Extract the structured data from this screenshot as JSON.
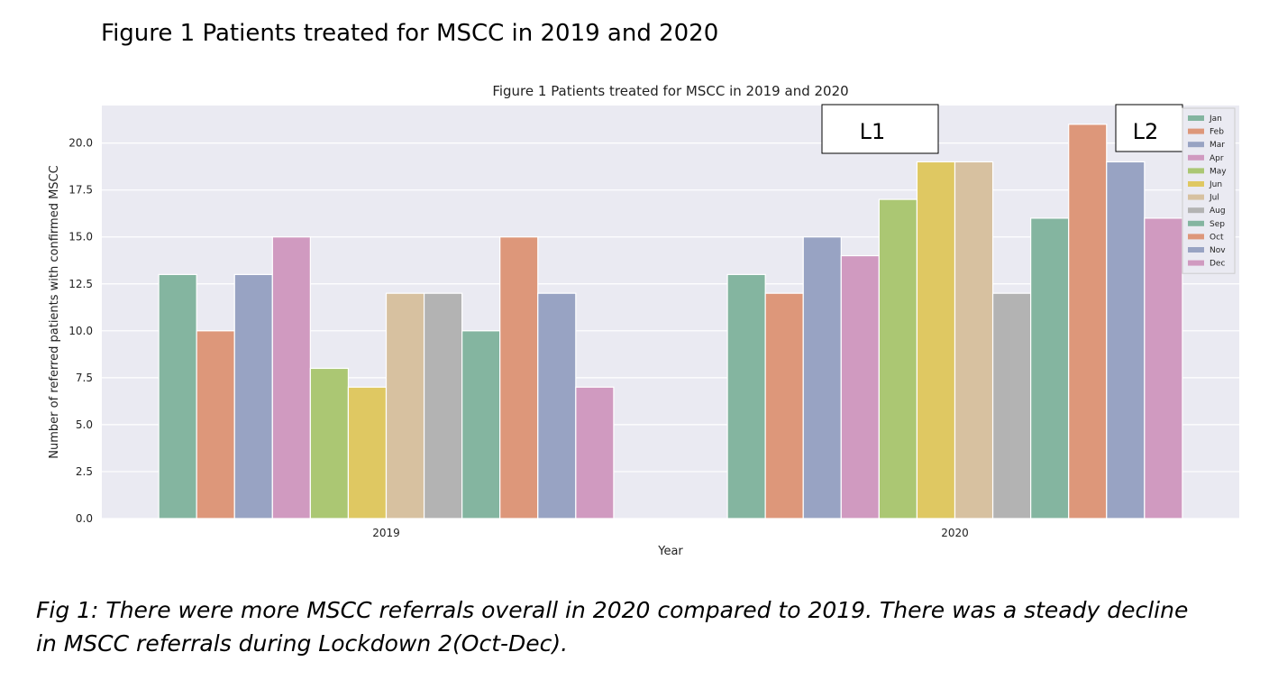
{
  "page": {
    "title": "Figure 1 Patients treated for MSCC in 2019 and 2020",
    "caption_line1": "Fig 1: There were more MSCC referrals overall in 2020 compared to 2019.  There was a steady decline",
    "caption_line2": "in MSCC referrals during Lockdown 2(Oct-Dec)."
  },
  "chart_data": {
    "type": "bar",
    "title": "Figure 1 Patients treated for MSCC in 2019 and 2020",
    "xlabel": "Year",
    "ylabel": "Number of referred patients with confirmed MSCC",
    "categories": [
      "2019",
      "2020"
    ],
    "ylim": [
      0,
      22
    ],
    "yticks": [
      "0.0",
      "2.5",
      "5.0",
      "7.5",
      "10.0",
      "12.5",
      "15.0",
      "17.5",
      "20.0"
    ],
    "grid": true,
    "legend_position": "top-right",
    "series": [
      {
        "name": "Jan",
        "color": "#84b5a0",
        "values": [
          13,
          13
        ]
      },
      {
        "name": "Feb",
        "color": "#dd977a",
        "values": [
          10,
          12
        ]
      },
      {
        "name": "Mar",
        "color": "#98a3c3",
        "values": [
          13,
          15
        ]
      },
      {
        "name": "Apr",
        "color": "#d09ac0",
        "values": [
          15,
          14
        ]
      },
      {
        "name": "May",
        "color": "#abc773",
        "values": [
          8,
          17
        ]
      },
      {
        "name": "Jun",
        "color": "#dfc862",
        "values": [
          7,
          19
        ]
      },
      {
        "name": "Jul",
        "color": "#d7c1a0",
        "values": [
          12,
          19
        ]
      },
      {
        "name": "Aug",
        "color": "#b3b3b3",
        "values": [
          12,
          12
        ]
      },
      {
        "name": "Sep",
        "color": "#84b5a0",
        "values": [
          10,
          16
        ]
      },
      {
        "name": "Oct",
        "color": "#dd977a",
        "values": [
          15,
          21
        ]
      },
      {
        "name": "Nov",
        "color": "#98a3c3",
        "values": [
          12,
          19
        ]
      },
      {
        "name": "Dec",
        "color": "#d09ac0",
        "values": [
          7,
          16
        ]
      }
    ],
    "annotations": [
      "L1",
      "L2"
    ]
  },
  "colors": {
    "plot_background": "#eaeaf2",
    "grid": "#ffffff"
  }
}
